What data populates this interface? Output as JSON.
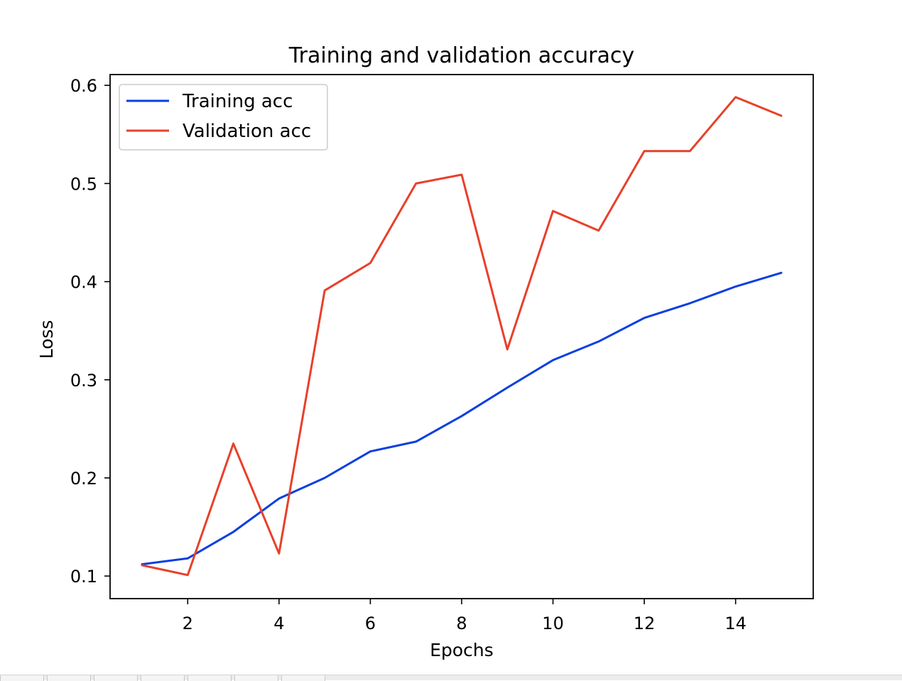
{
  "chart_data": {
    "type": "line",
    "title": "Training and validation accuracy",
    "xlabel": "Epochs",
    "ylabel": "Loss",
    "xlim": [
      0.3,
      15.7
    ],
    "ylim": [
      0.077,
      0.611
    ],
    "xticks": [
      2,
      4,
      6,
      8,
      10,
      12,
      14
    ],
    "yticks": [
      0.1,
      0.2,
      0.3,
      0.4,
      0.5,
      0.6
    ],
    "ytick_labels": [
      "0.1",
      "0.2",
      "0.3",
      "0.4",
      "0.5",
      "0.6"
    ],
    "x": [
      1,
      2,
      3,
      4,
      5,
      6,
      7,
      8,
      9,
      10,
      11,
      12,
      13,
      14,
      15
    ],
    "series": [
      {
        "name": "Training acc",
        "color": "#0a3fe0",
        "values": [
          0.112,
          0.118,
          0.145,
          0.179,
          0.2,
          0.227,
          0.237,
          0.263,
          0.292,
          0.32,
          0.339,
          0.363,
          0.378,
          0.395,
          0.409
        ]
      },
      {
        "name": "Validation acc",
        "color": "#e8402a",
        "values": [
          0.111,
          0.101,
          0.235,
          0.123,
          0.391,
          0.419,
          0.5,
          0.509,
          0.331,
          0.472,
          0.452,
          0.533,
          0.533,
          0.588,
          0.569
        ]
      }
    ],
    "grid": false,
    "legend": "top-left"
  },
  "toolbar": {
    "buttons": [
      "",
      "",
      "",
      "",
      "",
      "",
      ""
    ]
  }
}
